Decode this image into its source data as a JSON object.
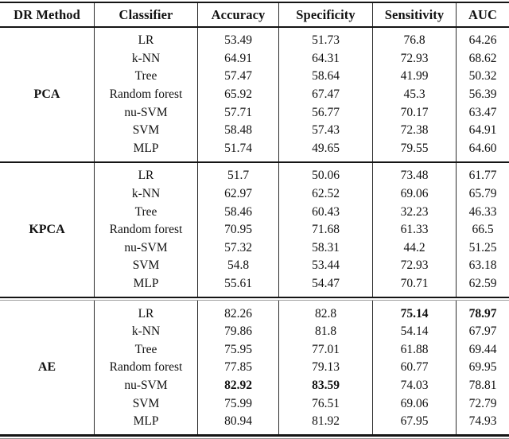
{
  "table": {
    "columns": [
      "DR Method",
      "Classifier",
      "Accuracy",
      "Specificity",
      "Sensitivity",
      "AUC"
    ],
    "text_color": "#121212",
    "rule_color": "#141414",
    "groups": [
      {
        "method": "PCA",
        "rows": [
          {
            "classifier": "LR",
            "accuracy": "53.49",
            "specificity": "51.73",
            "sensitivity": "76.8",
            "auc": "64.26",
            "bold": []
          },
          {
            "classifier": "k-NN",
            "accuracy": "64.91",
            "specificity": "64.31",
            "sensitivity": "72.93",
            "auc": "68.62",
            "bold": []
          },
          {
            "classifier": "Tree",
            "accuracy": "57.47",
            "specificity": "58.64",
            "sensitivity": "41.99",
            "auc": "50.32",
            "bold": []
          },
          {
            "classifier": "Random forest",
            "accuracy": "65.92",
            "specificity": "67.47",
            "sensitivity": "45.3",
            "auc": "56.39",
            "bold": []
          },
          {
            "classifier": "nu-SVM",
            "accuracy": "57.71",
            "specificity": "56.77",
            "sensitivity": "70.17",
            "auc": "63.47",
            "bold": []
          },
          {
            "classifier": "SVM",
            "accuracy": "58.48",
            "specificity": "57.43",
            "sensitivity": "72.38",
            "auc": "64.91",
            "bold": []
          },
          {
            "classifier": "MLP",
            "accuracy": "51.74",
            "specificity": "49.65",
            "sensitivity": "79.55",
            "auc": "64.60",
            "bold": []
          }
        ]
      },
      {
        "method": "KPCA",
        "rows": [
          {
            "classifier": "LR",
            "accuracy": "51.7",
            "specificity": "50.06",
            "sensitivity": "73.48",
            "auc": "61.77",
            "bold": []
          },
          {
            "classifier": "k-NN",
            "accuracy": "62.97",
            "specificity": "62.52",
            "sensitivity": "69.06",
            "auc": "65.79",
            "bold": []
          },
          {
            "classifier": "Tree",
            "accuracy": "58.46",
            "specificity": "60.43",
            "sensitivity": "32.23",
            "auc": "46.33",
            "bold": []
          },
          {
            "classifier": "Random forest",
            "accuracy": "70.95",
            "specificity": "71.68",
            "sensitivity": "61.33",
            "auc": "66.5",
            "bold": []
          },
          {
            "classifier": "nu-SVM",
            "accuracy": "57.32",
            "specificity": "58.31",
            "sensitivity": "44.2",
            "auc": "51.25",
            "bold": []
          },
          {
            "classifier": "SVM",
            "accuracy": "54.8",
            "specificity": "53.44",
            "sensitivity": "72.93",
            "auc": "63.18",
            "bold": []
          },
          {
            "classifier": "MLP",
            "accuracy": "55.61",
            "specificity": "54.47",
            "sensitivity": "70.71",
            "auc": "62.59",
            "bold": []
          }
        ]
      },
      {
        "method": "AE",
        "rows": [
          {
            "classifier": "LR",
            "accuracy": "82.26",
            "specificity": "82.8",
            "sensitivity": "75.14",
            "auc": "78.97",
            "bold": [
              "sensitivity",
              "auc"
            ]
          },
          {
            "classifier": "k-NN",
            "accuracy": "79.86",
            "specificity": "81.8",
            "sensitivity": "54.14",
            "auc": "67.97",
            "bold": []
          },
          {
            "classifier": "Tree",
            "accuracy": "75.95",
            "specificity": "77.01",
            "sensitivity": "61.88",
            "auc": "69.44",
            "bold": []
          },
          {
            "classifier": "Random forest",
            "accuracy": "77.85",
            "specificity": "79.13",
            "sensitivity": "60.77",
            "auc": "69.95",
            "bold": []
          },
          {
            "classifier": "nu-SVM",
            "accuracy": "82.92",
            "specificity": "83.59",
            "sensitivity": "74.03",
            "auc": "78.81",
            "bold": [
              "accuracy",
              "specificity"
            ]
          },
          {
            "classifier": "SVM",
            "accuracy": "75.99",
            "specificity": "76.51",
            "sensitivity": "69.06",
            "auc": "72.79",
            "bold": []
          },
          {
            "classifier": "MLP",
            "accuracy": "80.94",
            "specificity": "81.92",
            "sensitivity": "67.95",
            "auc": "74.93",
            "bold": []
          }
        ]
      }
    ]
  }
}
